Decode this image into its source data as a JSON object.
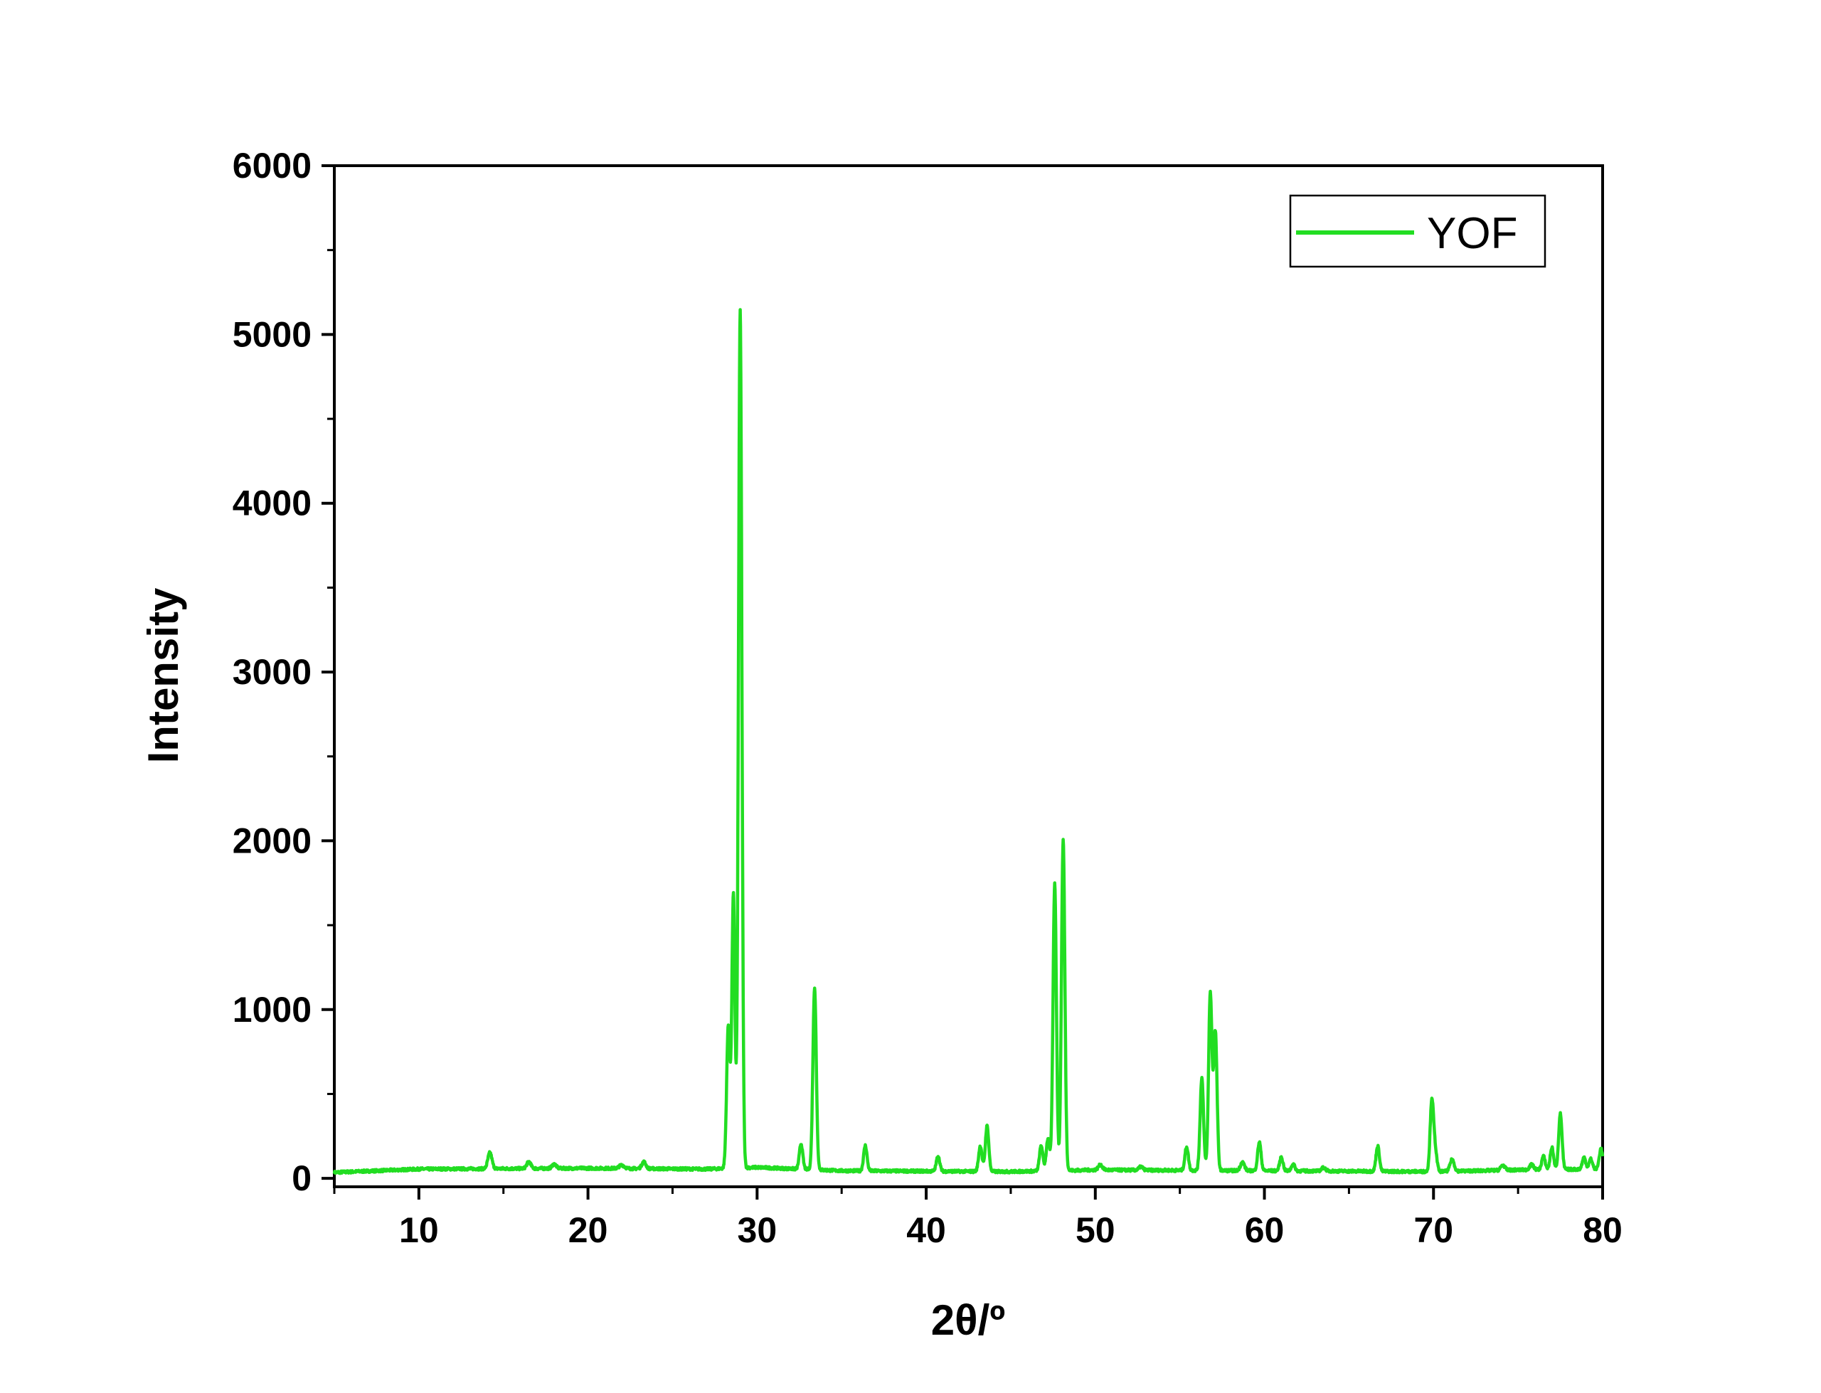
{
  "chart_data": {
    "type": "line",
    "title": "",
    "xlabel": "2θ/º",
    "ylabel": "Intensity",
    "xlim": [
      5,
      80
    ],
    "ylim": [
      -50,
      6000
    ],
    "x_ticks": [
      10,
      20,
      30,
      40,
      50,
      60,
      70,
      80
    ],
    "x_tick_labels": [
      "10",
      "20",
      "30",
      "40",
      "50",
      "60",
      "70",
      "80"
    ],
    "y_ticks": [
      0,
      1000,
      2000,
      3000,
      4000,
      5000,
      6000
    ],
    "y_tick_labels": [
      "0",
      "1000",
      "2000",
      "3000",
      "4000",
      "5000",
      "6000"
    ],
    "x_minor_step": 5,
    "y_minor_step": 500,
    "grid": false,
    "legend_position": "top-right",
    "series": [
      {
        "name": "YOF",
        "color": "#22dd22",
        "baseline": [
          [
            5,
            35
          ],
          [
            10,
            55
          ],
          [
            20,
            60
          ],
          [
            27,
            55
          ],
          [
            30,
            65
          ],
          [
            35,
            45
          ],
          [
            45,
            40
          ],
          [
            50,
            50
          ],
          [
            60,
            45
          ],
          [
            70,
            40
          ],
          [
            75,
            50
          ],
          [
            80,
            55
          ]
        ],
        "peaks": [
          [
            14.2,
            95,
            0.12
          ],
          [
            16.5,
            40,
            0.12
          ],
          [
            18,
            25,
            0.12
          ],
          [
            22,
            20,
            0.15
          ],
          [
            23.3,
            40,
            0.12
          ],
          [
            28.3,
            850,
            0.1
          ],
          [
            28.6,
            1620,
            0.09
          ],
          [
            29.0,
            5080,
            0.1
          ],
          [
            32.6,
            150,
            0.1
          ],
          [
            33.4,
            1080,
            0.1
          ],
          [
            36.4,
            150,
            0.1
          ],
          [
            40.7,
            90,
            0.1
          ],
          [
            43.2,
            150,
            0.1
          ],
          [
            43.6,
            270,
            0.1
          ],
          [
            46.8,
            150,
            0.1
          ],
          [
            47.2,
            190,
            0.1
          ],
          [
            47.6,
            1700,
            0.1
          ],
          [
            48.1,
            1960,
            0.1
          ],
          [
            50.3,
            30,
            0.12
          ],
          [
            52.7,
            20,
            0.12
          ],
          [
            55.4,
            140,
            0.1
          ],
          [
            56.3,
            550,
            0.1
          ],
          [
            56.8,
            1050,
            0.1
          ],
          [
            57.1,
            820,
            0.1
          ],
          [
            58.7,
            50,
            0.12
          ],
          [
            59.7,
            170,
            0.1
          ],
          [
            61.0,
            80,
            0.1
          ],
          [
            61.7,
            40,
            0.1
          ],
          [
            63.5,
            20,
            0.12
          ],
          [
            66.7,
            150,
            0.1
          ],
          [
            69.9,
            420,
            0.1
          ],
          [
            70.1,
            120,
            0.1
          ],
          [
            71.1,
            70,
            0.12
          ],
          [
            74.1,
            30,
            0.12
          ],
          [
            75.8,
            30,
            0.12
          ],
          [
            76.5,
            80,
            0.1
          ],
          [
            77.0,
            130,
            0.1
          ],
          [
            77.5,
            330,
            0.1
          ],
          [
            78.9,
            70,
            0.1
          ],
          [
            79.3,
            60,
            0.1
          ],
          [
            79.9,
            120,
            0.1
          ]
        ]
      }
    ]
  }
}
